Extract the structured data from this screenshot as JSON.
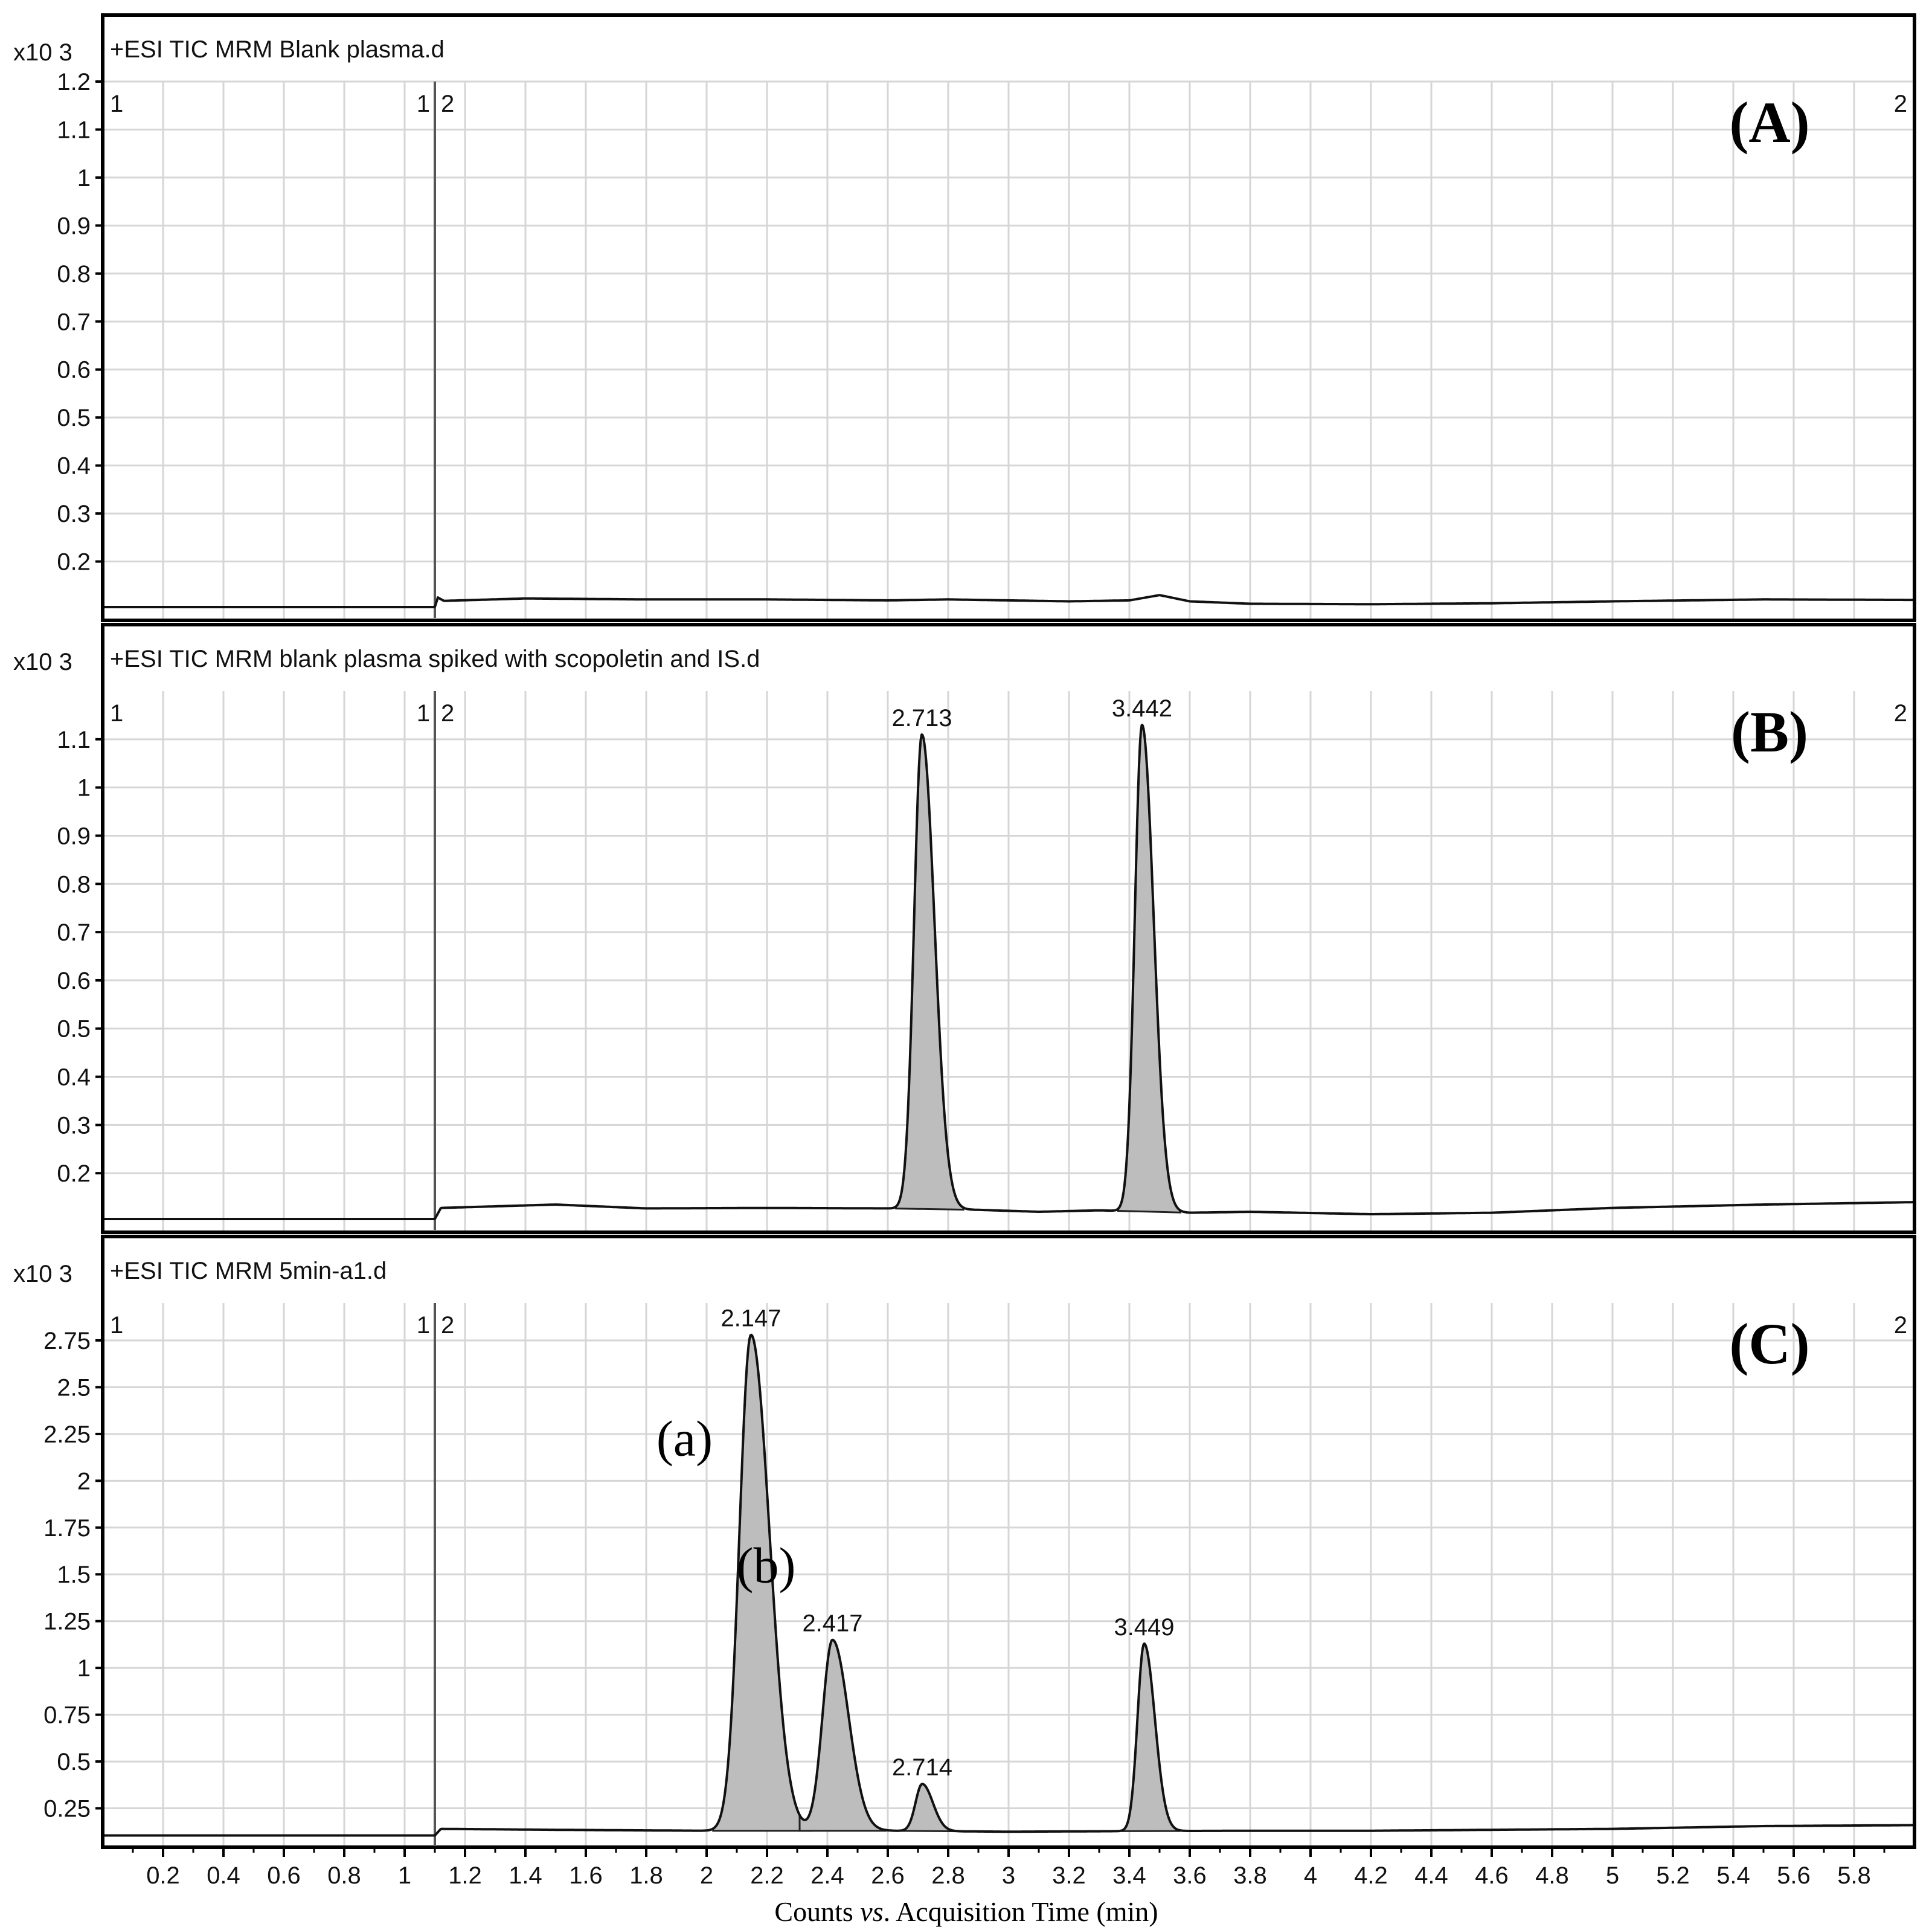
{
  "chart_data": [
    {
      "type": "line",
      "panel": "(A)",
      "title": "+ESI TIC MRM  Blank plasma.d",
      "y_multiplier": "x10 3",
      "xlim": [
        0,
        6
      ],
      "ylim": [
        0.1,
        1.2
      ],
      "yticks": [
        0.2,
        0.3,
        0.4,
        0.5,
        0.6,
        0.7,
        0.8,
        0.9,
        1,
        1.1,
        1.2
      ],
      "segment_markers": [
        "1",
        "1",
        "2",
        "2"
      ],
      "baseline": [
        [
          0.0,
          0.105
        ],
        [
          1.1,
          0.105
        ],
        [
          1.11,
          0.125
        ],
        [
          1.13,
          0.118
        ],
        [
          1.4,
          0.123
        ],
        [
          1.8,
          0.121
        ],
        [
          2.2,
          0.121
        ],
        [
          2.6,
          0.119
        ],
        [
          2.8,
          0.121
        ],
        [
          3.2,
          0.117
        ],
        [
          3.4,
          0.119
        ],
        [
          3.5,
          0.13
        ],
        [
          3.6,
          0.117
        ],
        [
          3.8,
          0.112
        ],
        [
          4.2,
          0.111
        ],
        [
          4.6,
          0.113
        ],
        [
          5.0,
          0.117
        ],
        [
          5.5,
          0.121
        ],
        [
          6.0,
          0.12
        ]
      ],
      "peaks": []
    },
    {
      "type": "line",
      "panel": "(B)",
      "title": "+ESI TIC MRM  blank plasma spiked with scopoletin and IS.d",
      "y_multiplier": "x10 3",
      "xlim": [
        0,
        6
      ],
      "ylim": [
        0.1,
        1.2
      ],
      "yticks": [
        0.2,
        0.3,
        0.4,
        0.5,
        0.6,
        0.7,
        0.8,
        0.9,
        1,
        1.1
      ],
      "segment_markers": [
        "1",
        "1",
        "2",
        "2"
      ],
      "baseline": [
        [
          0.0,
          0.105
        ],
        [
          1.1,
          0.105
        ],
        [
          1.12,
          0.128
        ],
        [
          1.5,
          0.135
        ],
        [
          1.8,
          0.127
        ],
        [
          2.2,
          0.128
        ],
        [
          2.6,
          0.127
        ],
        [
          2.9,
          0.124
        ],
        [
          3.1,
          0.12
        ],
        [
          3.3,
          0.123
        ],
        [
          3.6,
          0.118
        ],
        [
          3.8,
          0.12
        ],
        [
          4.2,
          0.115
        ],
        [
          4.6,
          0.118
        ],
        [
          5.0,
          0.128
        ],
        [
          5.5,
          0.135
        ],
        [
          6.0,
          0.14
        ]
      ],
      "peaks": [
        {
          "rt": 2.713,
          "label": "2.713",
          "apex": 1.11,
          "width": 0.026
        },
        {
          "rt": 3.442,
          "label": "3.442",
          "apex": 1.13,
          "width": 0.024
        }
      ]
    },
    {
      "type": "line",
      "panel": "(C)",
      "title": "+ESI TIC MRM  5min-a1.d",
      "y_multiplier": "x10 3",
      "xlim": [
        0,
        6
      ],
      "ylim": [
        0.1,
        2.95
      ],
      "yticks": [
        0.25,
        0.5,
        0.75,
        1,
        1.25,
        1.5,
        1.75,
        2,
        2.25,
        2.5,
        2.75
      ],
      "segment_markers": [
        "1",
        "1",
        "2",
        "2"
      ],
      "baseline": [
        [
          0.0,
          0.105
        ],
        [
          1.1,
          0.105
        ],
        [
          1.12,
          0.14
        ],
        [
          1.5,
          0.135
        ],
        [
          2.0,
          0.13
        ],
        [
          2.6,
          0.13
        ],
        [
          3.0,
          0.125
        ],
        [
          3.4,
          0.128
        ],
        [
          3.8,
          0.13
        ],
        [
          4.2,
          0.13
        ],
        [
          4.6,
          0.135
        ],
        [
          5.0,
          0.14
        ],
        [
          5.5,
          0.155
        ],
        [
          6.0,
          0.16
        ]
      ],
      "peaks": [
        {
          "rt": 2.147,
          "label": "2.147",
          "apex": 2.78,
          "width": 0.038,
          "annotation": "(a)"
        },
        {
          "rt": 2.417,
          "label": "2.417",
          "apex": 1.15,
          "width": 0.033,
          "annotation": "(b)"
        },
        {
          "rt": 2.714,
          "label": "2.714",
          "apex": 0.38,
          "width": 0.022
        },
        {
          "rt": 3.449,
          "label": "3.449",
          "apex": 1.13,
          "width": 0.022
        }
      ]
    }
  ],
  "x_axis": {
    "ticks": [
      0.2,
      0.4,
      0.6,
      0.8,
      1,
      1.2,
      1.4,
      1.6,
      1.8,
      2,
      2.2,
      2.4,
      2.6,
      2.8,
      3,
      3.2,
      3.4,
      3.6,
      3.8,
      4,
      4.2,
      4.4,
      4.6,
      4.8,
      5,
      5.2,
      5.4,
      5.6,
      5.8
    ],
    "label_prefix": "Counts",
    "label_italic": "vs",
    "label_suffix": ". Acquisition Time (min)"
  }
}
